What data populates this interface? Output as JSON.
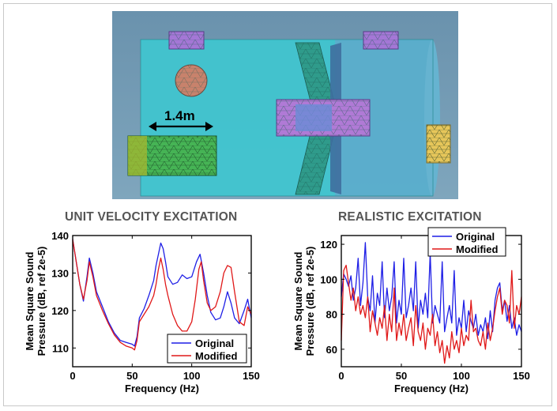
{
  "figure": {
    "dimension_label": "1.4m"
  },
  "chart_data": [
    {
      "type": "line",
      "title": "UNIT VELOCITY EXCITATION",
      "xlabel": "Frequency (Hz)",
      "ylabel_lines": [
        "Mean Square Sound",
        "Pressure (dB, ref 2e-5)"
      ],
      "xlim": [
        0,
        150
      ],
      "ylim": [
        105,
        140
      ],
      "xticks": [
        0,
        50,
        100,
        150
      ],
      "yticks": [
        110,
        120,
        130,
        140
      ],
      "grid": false,
      "legend_position": "bottom-right",
      "series": [
        {
          "name": "Original",
          "color": "#1f1fe6",
          "x": [
            0,
            3,
            6,
            9,
            12,
            14,
            17,
            20,
            25,
            30,
            35,
            40,
            45,
            50,
            52,
            54,
            56,
            60,
            64,
            68,
            70,
            72,
            74,
            76,
            78,
            80,
            84,
            88,
            92,
            96,
            100,
            104,
            107,
            110,
            113,
            116,
            120,
            124,
            127,
            130,
            133,
            136,
            140,
            144,
            147,
            150
          ],
          "y": [
            139,
            133,
            127,
            122.5,
            129,
            134,
            130,
            125,
            121,
            117,
            114,
            112,
            111.5,
            111,
            110.5,
            113,
            118,
            120.5,
            124,
            128,
            132,
            135,
            138,
            136.5,
            133,
            129,
            127,
            127.5,
            129.5,
            128.5,
            129,
            133,
            135,
            130,
            124,
            119.5,
            117.5,
            118,
            121,
            125,
            122,
            118,
            116.5,
            120,
            123,
            118
          ]
        },
        {
          "name": "Modified",
          "color": "#e01818",
          "x": [
            0,
            3,
            6,
            9,
            12,
            14,
            17,
            20,
            25,
            30,
            35,
            40,
            45,
            50,
            52,
            54,
            56,
            60,
            64,
            68,
            70,
            72,
            74,
            76,
            78,
            80,
            84,
            88,
            92,
            96,
            100,
            103,
            106,
            108,
            110,
            113,
            116,
            120,
            124,
            127,
            130,
            133,
            136,
            140,
            144,
            147,
            150
          ],
          "y": [
            139,
            133,
            127,
            123,
            128,
            133,
            129,
            124,
            120,
            116.5,
            113.5,
            111.5,
            110.5,
            110,
            109.5,
            112,
            117,
            119,
            121,
            124,
            127,
            131,
            134,
            131,
            127,
            124,
            119,
            116,
            114.5,
            114.5,
            117,
            123,
            131,
            133,
            128,
            122,
            120,
            121,
            125,
            130,
            132,
            131.5,
            125,
            117,
            116,
            121,
            119
          ]
        }
      ]
    },
    {
      "type": "line",
      "title": "REALISTIC EXCITATION",
      "xlabel": "Frequency (Hz)",
      "ylabel_lines": [
        "Mean Square Sound",
        "Pressure (dB, ref 2e-5)"
      ],
      "xlim": [
        0,
        150
      ],
      "ylim": [
        50,
        125
      ],
      "xticks": [
        0,
        50,
        100,
        150
      ],
      "yticks": [
        60,
        80,
        100,
        120
      ],
      "grid": false,
      "legend_position": "top",
      "series": [
        {
          "name": "Original",
          "color": "#1f1fe6",
          "x": [
            0,
            2,
            4,
            6,
            8,
            10,
            12,
            14,
            16,
            18,
            20,
            22,
            24,
            26,
            28,
            30,
            32,
            34,
            36,
            38,
            40,
            42,
            44,
            46,
            48,
            50,
            52,
            54,
            56,
            58,
            60,
            62,
            64,
            66,
            68,
            70,
            72,
            74,
            76,
            78,
            80,
            82,
            84,
            86,
            88,
            90,
            92,
            94,
            96,
            98,
            100,
            102,
            104,
            106,
            108,
            110,
            112,
            114,
            116,
            118,
            120,
            122,
            124,
            126,
            128,
            130,
            132,
            134,
            136,
            138,
            140,
            142,
            144,
            146,
            148,
            150
          ],
          "y": [
            90,
            103,
            100,
            96,
            102,
            88,
            95,
            112,
            85,
            98,
            121,
            90,
            82,
            102,
            75,
            92,
            85,
            110,
            78,
            95,
            82,
            90,
            110,
            75,
            88,
            80,
            112,
            78,
            85,
            95,
            82,
            110,
            72,
            88,
            80,
            92,
            78,
            115,
            75,
            85,
            80,
            75,
            110,
            70,
            78,
            85,
            75,
            105,
            68,
            78,
            72,
            88,
            70,
            82,
            76,
            72,
            80,
            68,
            74,
            70,
            78,
            66,
            82,
            70,
            88,
            95,
            98,
            82,
            88,
            76,
            85,
            72,
            78,
            68,
            74,
            70
          ]
        },
        {
          "name": "Modified",
          "color": "#e01818",
          "x": [
            0,
            2,
            4,
            6,
            8,
            10,
            12,
            14,
            16,
            18,
            20,
            22,
            24,
            26,
            28,
            30,
            32,
            34,
            36,
            38,
            40,
            42,
            44,
            46,
            48,
            50,
            52,
            54,
            56,
            58,
            60,
            62,
            64,
            66,
            68,
            70,
            72,
            74,
            76,
            78,
            80,
            82,
            84,
            86,
            88,
            90,
            92,
            94,
            96,
            98,
            100,
            102,
            104,
            106,
            108,
            110,
            112,
            114,
            116,
            118,
            120,
            122,
            124,
            126,
            128,
            130,
            132,
            134,
            136,
            138,
            140,
            142,
            144,
            146,
            148,
            150
          ],
          "y": [
            65,
            105,
            108,
            98,
            88,
            95,
            82,
            90,
            80,
            85,
            78,
            90,
            70,
            82,
            75,
            68,
            78,
            72,
            85,
            65,
            80,
            70,
            95,
            65,
            75,
            68,
            80,
            65,
            72,
            78,
            62,
            85,
            70,
            65,
            75,
            60,
            72,
            68,
            80,
            62,
            70,
            58,
            65,
            52,
            62,
            55,
            70,
            60,
            65,
            58,
            72,
            62,
            68,
            65,
            88,
            70,
            72,
            65,
            62,
            70,
            60,
            75,
            65,
            72,
            82,
            90,
            95,
            80,
            88,
            85,
            75,
            105,
            72,
            85,
            80,
            90
          ]
        }
      ]
    }
  ]
}
